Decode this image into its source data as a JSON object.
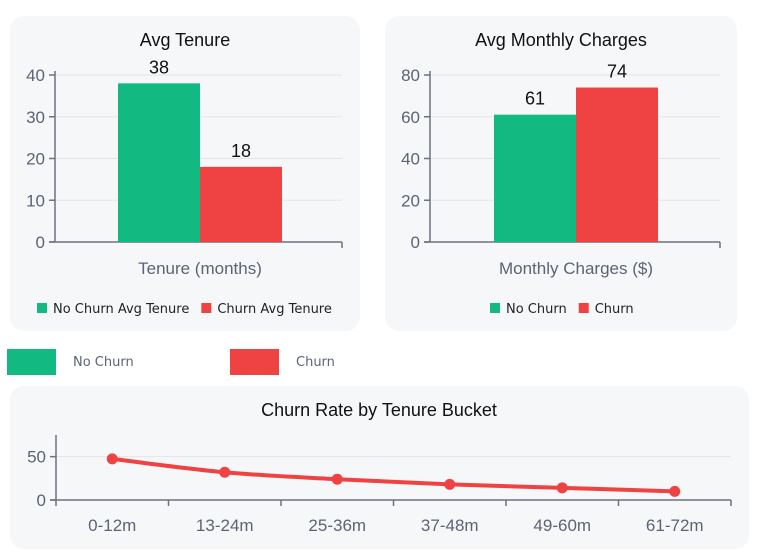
{
  "colors": {
    "no_churn": "#12b981",
    "churn": "#ef4343",
    "line": "#ef4343"
  },
  "legend": {
    "no_churn_label": "No Churn",
    "churn_label": "Churn"
  },
  "chart_data": [
    {
      "type": "bar",
      "title": "Avg Tenure",
      "xlabel": "Tenure (months)",
      "categories": [
        "Tenure (months)"
      ],
      "series": [
        {
          "name": "No Churn Avg Tenure",
          "values": [
            38
          ],
          "color": "#12b981"
        },
        {
          "name": "Churn Avg Tenure",
          "values": [
            18
          ],
          "color": "#ef4343"
        }
      ],
      "ylim": [
        0,
        40
      ],
      "yticks": [
        0,
        10,
        20,
        30,
        40
      ],
      "data_labels": [
        "38",
        "18"
      ],
      "grid": true,
      "legend": "bottom"
    },
    {
      "type": "bar",
      "title": "Avg Monthly Charges",
      "xlabel": "Monthly Charges ($)",
      "categories": [
        "Monthly Charges ($)"
      ],
      "series": [
        {
          "name": "No Churn",
          "values": [
            61
          ],
          "color": "#12b981"
        },
        {
          "name": "Churn",
          "values": [
            74
          ],
          "color": "#ef4343"
        }
      ],
      "ylim": [
        0,
        80
      ],
      "yticks": [
        0,
        20,
        40,
        60,
        80
      ],
      "data_labels": [
        "61",
        "74"
      ],
      "grid": true,
      "legend": "bottom"
    },
    {
      "type": "line",
      "title": "Churn Rate by Tenure Bucket",
      "categories": [
        "0-12m",
        "13-24m",
        "25-36m",
        "37-48m",
        "49-60m",
        "61-72m"
      ],
      "series": [
        {
          "values": [
            47.5,
            32,
            24,
            18,
            14,
            10
          ],
          "color": "#ef4343"
        }
      ],
      "ylim": [
        0,
        60
      ],
      "yticks": [
        0,
        50
      ],
      "grid": true,
      "smooth": true
    }
  ]
}
